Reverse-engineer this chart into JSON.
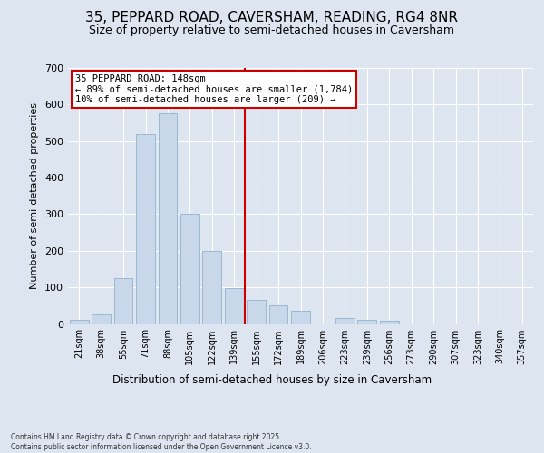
{
  "title": "35, PEPPARD ROAD, CAVERSHAM, READING, RG4 8NR",
  "subtitle": "Size of property relative to semi-detached houses in Caversham",
  "xlabel": "Distribution of semi-detached houses by size in Caversham",
  "ylabel": "Number of semi-detached properties",
  "categories": [
    "21sqm",
    "38sqm",
    "55sqm",
    "71sqm",
    "88sqm",
    "105sqm",
    "122sqm",
    "139sqm",
    "155sqm",
    "172sqm",
    "189sqm",
    "206sqm",
    "223sqm",
    "239sqm",
    "256sqm",
    "273sqm",
    "290sqm",
    "307sqm",
    "323sqm",
    "340sqm",
    "357sqm"
  ],
  "values": [
    10,
    25,
    125,
    520,
    575,
    300,
    200,
    97,
    65,
    50,
    35,
    0,
    15,
    12,
    8,
    0,
    0,
    0,
    0,
    0,
    0
  ],
  "bar_color": "#c8d8ea",
  "bar_edge_color": "#9ab8d0",
  "vline_color": "#cc0000",
  "annotation_text": "35 PEPPARD ROAD: 148sqm\n← 89% of semi-detached houses are smaller (1,784)\n10% of semi-detached houses are larger (209) →",
  "annotation_box_edgecolor": "#cc0000",
  "bg_color": "#dde6f0",
  "grid_color": "#ffffff",
  "footer": "Contains HM Land Registry data © Crown copyright and database right 2025.\nContains public sector information licensed under the Open Government Licence v3.0.",
  "ylim": [
    0,
    700
  ],
  "yticks": [
    0,
    100,
    200,
    300,
    400,
    500,
    600,
    700
  ],
  "title_fontsize": 11,
  "subtitle_fontsize": 9
}
